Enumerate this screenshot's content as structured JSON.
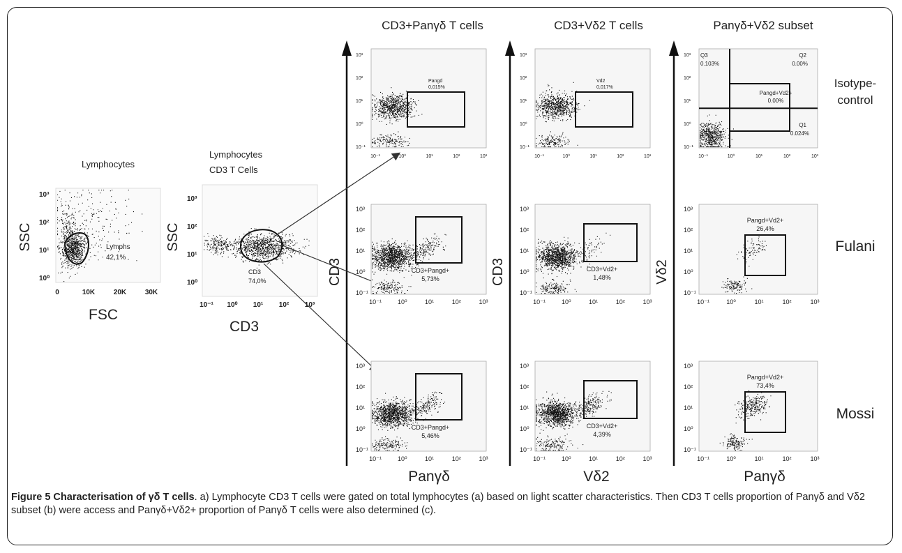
{
  "column_headers": {
    "panyd": "CD3+Panγδ T cells",
    "vd2": "CD3+Vδ2 T cells",
    "subset": "Panγδ+Vδ2 subset"
  },
  "row_labels": [
    "Isotype-\ncontrol",
    "Fulani",
    "Mossi"
  ],
  "left_panels": {
    "lymph": {
      "title": "Lymphocytes",
      "xlabel": "FSC",
      "ylabel": "SSC",
      "gate": "Lymphs",
      "percent": "42,1%",
      "xticks": [
        "0",
        "10K",
        "20K",
        "30K"
      ],
      "yticks": [
        "10⁰",
        "10¹",
        "10²",
        "10³"
      ]
    },
    "cd3": {
      "title_line1": "Lymphocytes",
      "title_line2": "CD3 T Cells",
      "xlabel": "CD3",
      "ylabel": "SSC",
      "gate": "CD3",
      "percent": "74,0%",
      "xticks": [
        "10⁻¹",
        "10⁰",
        "10¹",
        "10²",
        "10³"
      ],
      "yticks": [
        "10⁰",
        "10¹",
        "10²",
        "10³"
      ]
    }
  },
  "axis_labels": {
    "col1_y": "CD3",
    "col1_x": "Panγδ",
    "col2_y": "CD3",
    "col2_x": "Vδ2",
    "col3_y": "Vδ2",
    "col3_x": "Panγδ"
  },
  "panels": {
    "iso_pan": {
      "gate": "Pangd",
      "percent": "0,015%"
    },
    "iso_vd2": {
      "gate": "Vd2",
      "percent": "0,017%"
    },
    "iso_sub": {
      "q3": "Q3",
      "q3p": "0.103%",
      "q2": "Q2",
      "q2p": "0.00%",
      "mid": "Pangd+Vd2+",
      "midp": "0.00%",
      "q4": "Q4",
      "q4p": "99.9%",
      "q1": "Q1",
      "q1p": "0.024%"
    },
    "ful_pan": {
      "gate": "CD3+Pangd+",
      "percent": "5,73%"
    },
    "ful_vd2": {
      "gate": "CD3+Vd2+",
      "percent": "1,48%"
    },
    "ful_sub": {
      "gate": "Pangd+Vd2+",
      "percent": "26,4%"
    },
    "mos_pan": {
      "gate": "CD3+Pangd+",
      "percent": "5,46%"
    },
    "mos_vd2": {
      "gate": "CD3+Vd2+",
      "percent": "4,39%"
    },
    "mos_sub": {
      "gate": "Pangd+Vd2+",
      "percent": "73,4%"
    }
  },
  "log_ticks": [
    "10⁻¹",
    "10⁰",
    "10¹",
    "10²",
    "10³"
  ],
  "caption": {
    "lead": "Figure 5 Characterisation of γδ T cells",
    "text": ". a) Lymphocyte CD3 T cells were gated on total lymphocytes (a) based on light scatter characteristics. Then CD3 T cells proportion of Panγδ and Vδ2 subset (b) were access and Panγδ+Vδ2+ proportion of Panγδ T cells were also determined (c)."
  }
}
